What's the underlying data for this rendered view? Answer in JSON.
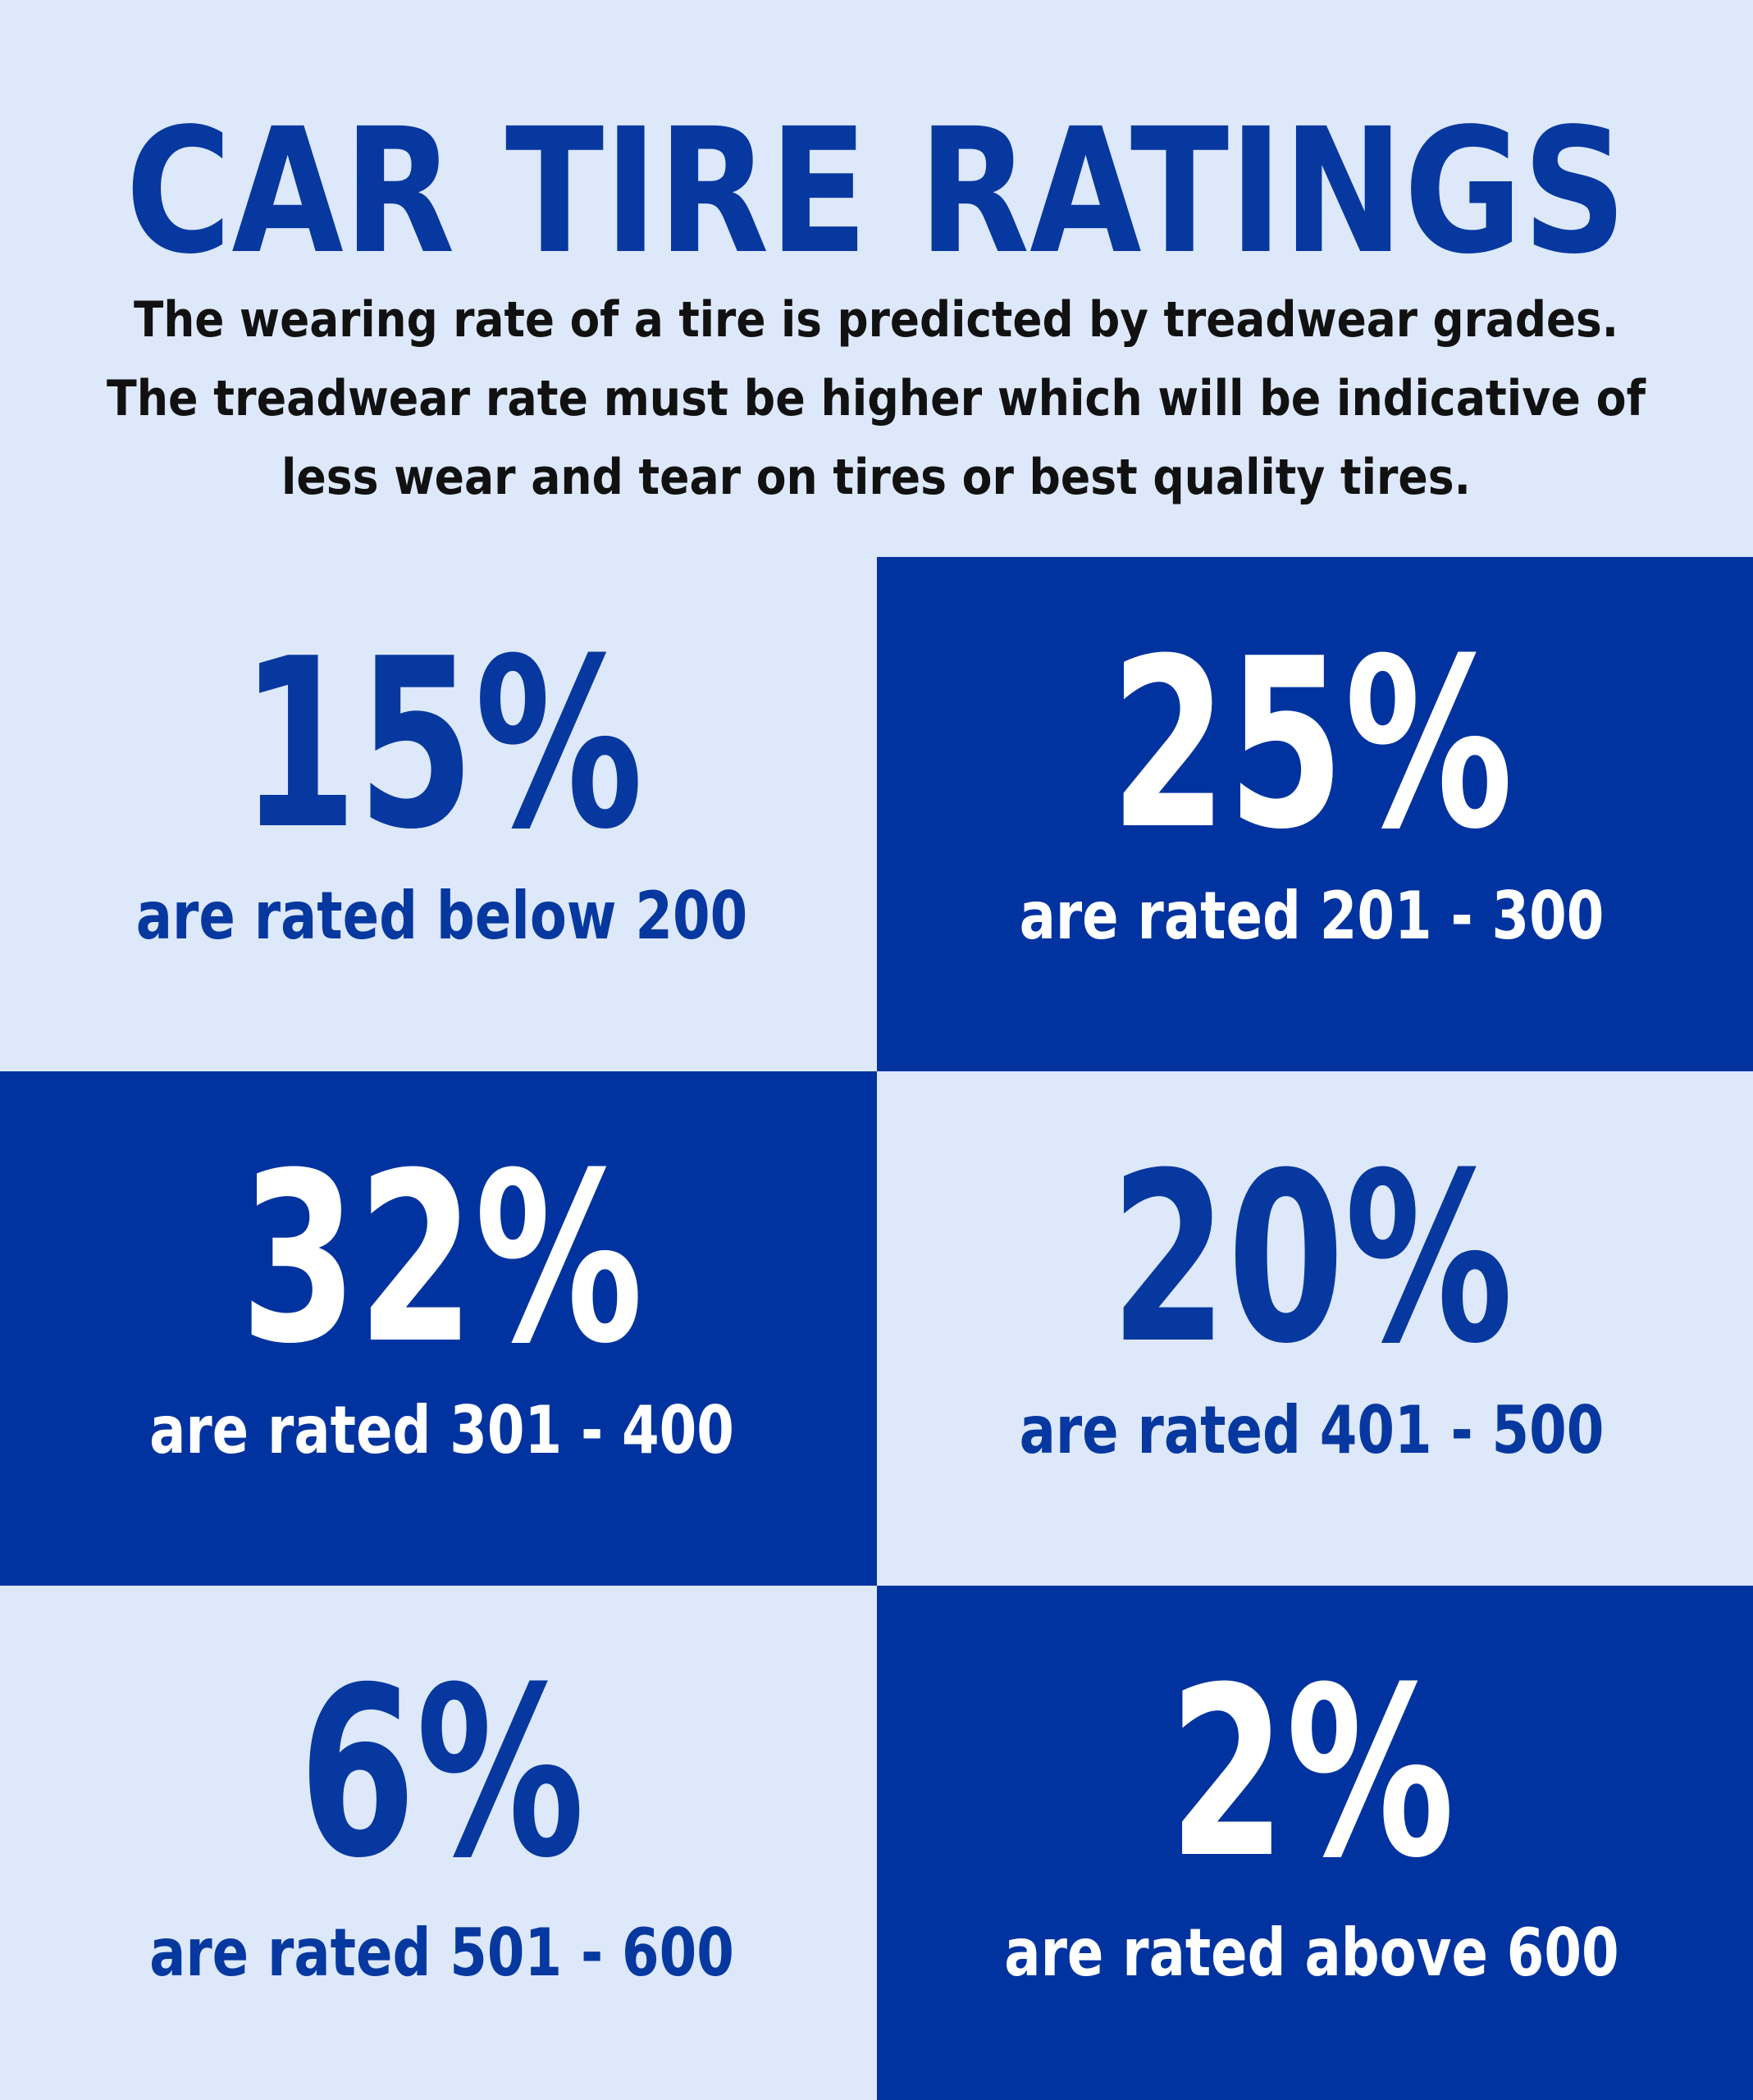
{
  "header": {
    "title": "CAR TIRE RATINGS",
    "subtitle": [
      "The wearing rate of a tire is predicted by treadwear grades.",
      "The treadwear rate must be higher which will be indicative of",
      "less wear and tear on tires or best quality tires."
    ]
  },
  "tiles": [
    {
      "value": "15%",
      "caption": "are rated below 200"
    },
    {
      "value": "25%",
      "caption": "are rated 201 - 300"
    },
    {
      "value": "32%",
      "caption": "are rated 301 - 400"
    },
    {
      "value": "20%",
      "caption": "are rated 401 - 500"
    },
    {
      "value": "6%",
      "caption": "are rated 501 - 600"
    },
    {
      "value": "2%",
      "caption": "are rated above 600"
    }
  ]
}
